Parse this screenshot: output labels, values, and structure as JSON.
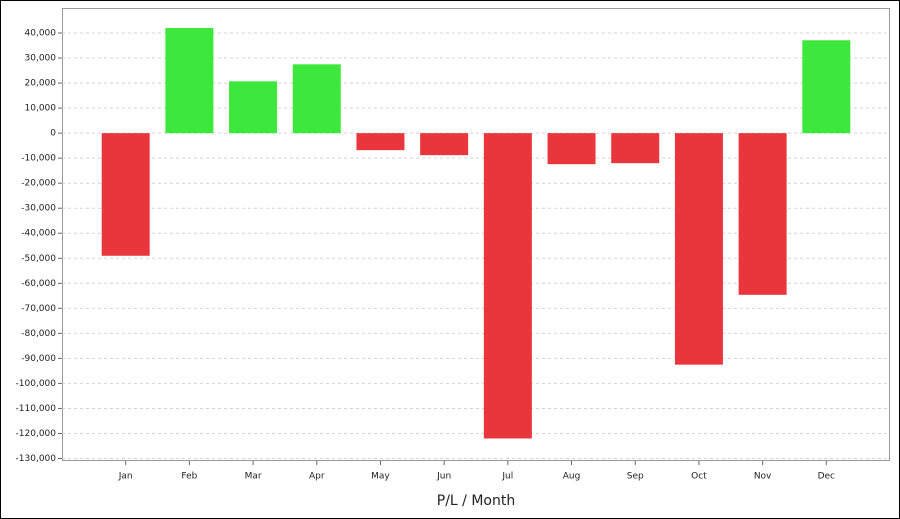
{
  "chart_data": {
    "type": "bar",
    "x_label": "P/L / Month",
    "categories": [
      "Jan",
      "Feb",
      "Mar",
      "Apr",
      "May",
      "Jun",
      "Jul",
      "Aug",
      "Sep",
      "Oct",
      "Nov",
      "Dec"
    ],
    "values": [
      -49000,
      42000,
      20700,
      27500,
      -6800,
      -8800,
      -122000,
      -12400,
      -12000,
      -92500,
      -64600,
      37100
    ],
    "positive_color": "#3de83d",
    "negative_color": "#e8363c",
    "ylim": [
      -131000,
      50000
    ],
    "yticks": [
      {
        "value": 40000,
        "label": "40,000"
      },
      {
        "value": 30000,
        "label": "30,000"
      },
      {
        "value": 20000,
        "label": "20,000"
      },
      {
        "value": 10000,
        "label": "10,000"
      },
      0,
      {
        "value": -10000,
        "label": "-10,000"
      },
      {
        "value": -20000,
        "label": "-20,000"
      },
      {
        "value": -30000,
        "label": "-30,000"
      },
      {
        "value": -40000,
        "label": "-40,000"
      },
      {
        "value": -50000,
        "label": "-50,000"
      },
      {
        "value": -60000,
        "label": "-60,000"
      },
      {
        "value": -70000,
        "label": "-70,000"
      },
      {
        "value": -80000,
        "label": "-80,000"
      },
      {
        "value": -90000,
        "label": "-90,000"
      },
      {
        "value": -100000,
        "label": "-100,000"
      },
      {
        "value": -110000,
        "label": "-110,000"
      },
      {
        "value": -120000,
        "label": "-120,000"
      },
      {
        "value": -130000,
        "label": "-130,000"
      }
    ],
    "grid": true
  }
}
